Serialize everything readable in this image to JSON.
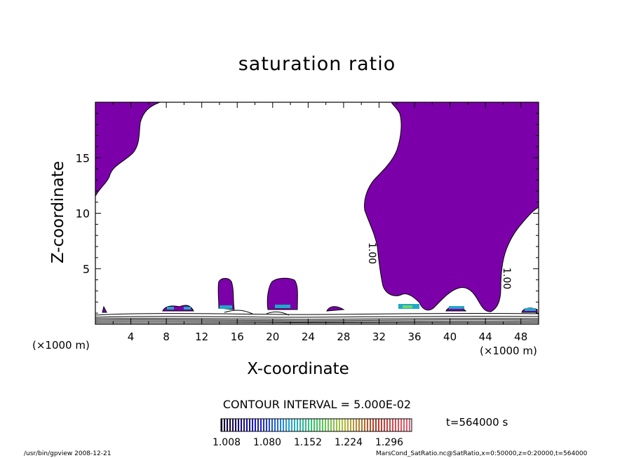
{
  "chart_data": {
    "type": "contour",
    "title": "saturation ratio",
    "xlabel": "X-coordinate",
    "ylabel": "Z-coordinate",
    "x_unit_left": "(×1000 m)",
    "x_unit_right": "(×1000 m)",
    "xlim": [
      0,
      50
    ],
    "ylim": [
      0,
      20
    ],
    "x_ticks": [
      4,
      8,
      12,
      16,
      20,
      24,
      28,
      32,
      36,
      40,
      44,
      48
    ],
    "y_ticks": [
      5,
      10,
      15
    ],
    "contour_interval": "CONTOUR INTERVAL = 5.000E-02",
    "contour_labels": [
      "1.00",
      "1.00"
    ],
    "colorbar_ticks": [
      "1.008",
      "1.080",
      "1.152",
      "1.224",
      "1.296"
    ],
    "colorbar_range": [
      1.008,
      1.296
    ],
    "time_label": "t=564000 s",
    "footer_left": "/usr/bin/gpview   2008-12-21",
    "footer_right": "MarsCond_SatRatio.nc@SatRatio,x=0:50000,z=0:20000,t=564000",
    "colors": {
      "fill": "#7b00aa",
      "background": "#ffffff",
      "lines": "#000000"
    }
  }
}
